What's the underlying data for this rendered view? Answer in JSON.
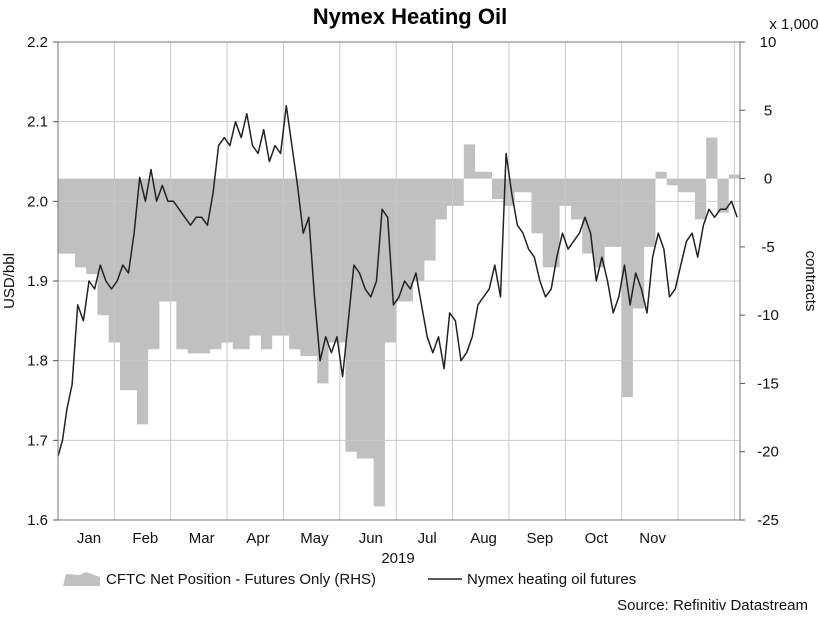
{
  "chart_data": {
    "type": "line",
    "title": "Nymex Heating Oil",
    "x_period": "2019",
    "months": [
      "Jan",
      "Feb",
      "Mar",
      "Apr",
      "May",
      "Jun",
      "Jul",
      "Aug",
      "Sep",
      "Oct",
      "Nov"
    ],
    "left_axis": {
      "label": "USD/bbl",
      "min": 1.6,
      "max": 2.2,
      "ticks": [
        "1.6",
        "1.7",
        "1.8",
        "1.9",
        "2.0",
        "2.1",
        "2.2"
      ]
    },
    "right_axis": {
      "label": "contracts",
      "multiplier": "x 1,000",
      "min": -25,
      "max": 10,
      "ticks": [
        "-25",
        "-20",
        "-15",
        "-10",
        "-5",
        "0",
        "5",
        "10"
      ]
    },
    "grid": true,
    "source": "Source: Refinitiv Datastream",
    "series": [
      {
        "name": "CFTC Net Position - Futures Only (RHS)",
        "type": "area",
        "axis": "right",
        "color": "#c0c0c0",
        "x": [
          0.0,
          0.3,
          0.3,
          0.5,
          0.5,
          0.7,
          0.7,
          0.9,
          0.9,
          1.1,
          1.1,
          1.4,
          1.4,
          1.6,
          1.6,
          1.8,
          1.8,
          2.1,
          2.1,
          2.3,
          2.3,
          2.7,
          2.7,
          2.9,
          2.9,
          3.1,
          3.1,
          3.4,
          3.4,
          3.6,
          3.6,
          3.8,
          3.8,
          4.1,
          4.1,
          4.3,
          4.3,
          4.6,
          4.6,
          4.8,
          4.8,
          5.1,
          5.1,
          5.3,
          5.3,
          5.6,
          5.6,
          5.8,
          5.8,
          6.0,
          6.0,
          6.3,
          6.3,
          6.5,
          6.5,
          6.7,
          6.7,
          6.9,
          6.9,
          7.2,
          7.2,
          7.4,
          7.4,
          7.7,
          7.7,
          7.9,
          7.9,
          8.1,
          8.1,
          8.4,
          8.4,
          8.6,
          8.6,
          8.9,
          8.9,
          9.1,
          9.1,
          9.3,
          9.3,
          9.5,
          9.5,
          9.7,
          9.7,
          10.0,
          10.0,
          10.2,
          10.2,
          10.4,
          10.4,
          10.6,
          10.6,
          10.8,
          10.8,
          11.0,
          11.0,
          11.3,
          11.3,
          11.5,
          11.5,
          11.7,
          11.7,
          11.9,
          11.9,
          12.1
        ],
        "values": [
          -5.5,
          -5.5,
          -6.5,
          -6.5,
          -7.0,
          -7.0,
          -10.0,
          -10.0,
          -12.0,
          -12.0,
          -15.5,
          -15.5,
          -18.0,
          -18.0,
          -12.5,
          -12.5,
          -9.0,
          -9.0,
          -12.5,
          -12.5,
          -12.8,
          -12.8,
          -12.5,
          -12.5,
          -12.0,
          -12.0,
          -12.5,
          -12.5,
          -11.5,
          -11.5,
          -12.5,
          -12.5,
          -11.5,
          -11.5,
          -12.5,
          -12.5,
          -13.0,
          -13.0,
          -15.0,
          -15.0,
          -12.0,
          -12.0,
          -20.0,
          -20.0,
          -20.5,
          -20.5,
          -24.0,
          -24.0,
          -12.0,
          -12.0,
          -9.0,
          -9.0,
          -7.5,
          -7.5,
          -6.0,
          -6.0,
          -3.0,
          -3.0,
          -2.0,
          -2.0,
          2.5,
          2.5,
          0.5,
          0.5,
          -1.5,
          -1.5,
          -2.0,
          -2.0,
          -1.0,
          -1.0,
          -4.0,
          -4.0,
          -6.5,
          -6.5,
          -2.0,
          -2.0,
          -3.0,
          -3.0,
          -5.5,
          -5.5,
          -6.5,
          -6.5,
          -5.0,
          -5.0,
          -16.0,
          -16.0,
          -9.5,
          -9.5,
          -5.0,
          -5.0,
          0.5,
          0.5,
          -0.5,
          -0.5,
          -1.0,
          -1.0,
          -3.0,
          -3.0,
          3.0,
          3.0,
          -2.5,
          -2.5,
          0.3,
          0.3
        ]
      },
      {
        "name": "Nymex heating oil futures",
        "type": "line",
        "axis": "left",
        "color": "#222222",
        "x": [
          0.0,
          0.08,
          0.16,
          0.25,
          0.35,
          0.45,
          0.55,
          0.65,
          0.75,
          0.85,
          0.95,
          1.05,
          1.15,
          1.25,
          1.35,
          1.45,
          1.55,
          1.65,
          1.75,
          1.85,
          1.95,
          2.05,
          2.15,
          2.25,
          2.35,
          2.45,
          2.55,
          2.65,
          2.75,
          2.85,
          2.95,
          3.05,
          3.15,
          3.25,
          3.35,
          3.45,
          3.55,
          3.65,
          3.75,
          3.85,
          3.95,
          4.05,
          4.15,
          4.25,
          4.35,
          4.45,
          4.55,
          4.65,
          4.75,
          4.85,
          4.95,
          5.05,
          5.15,
          5.25,
          5.35,
          5.45,
          5.55,
          5.65,
          5.75,
          5.85,
          5.95,
          6.05,
          6.15,
          6.25,
          6.35,
          6.45,
          6.55,
          6.65,
          6.75,
          6.85,
          6.95,
          7.05,
          7.15,
          7.25,
          7.35,
          7.45,
          7.55,
          7.65,
          7.75,
          7.85,
          7.95,
          8.05,
          8.15,
          8.25,
          8.35,
          8.45,
          8.55,
          8.65,
          8.75,
          8.85,
          8.95,
          9.05,
          9.15,
          9.25,
          9.35,
          9.45,
          9.55,
          9.65,
          9.75,
          9.85,
          9.95,
          10.05,
          10.15,
          10.25,
          10.35,
          10.45,
          10.55,
          10.65,
          10.75,
          10.85,
          10.95,
          11.05,
          11.15,
          11.25,
          11.35,
          11.45,
          11.55,
          11.65,
          11.75,
          11.85,
          11.95,
          12.05
        ],
        "values": [
          1.68,
          1.7,
          1.74,
          1.77,
          1.87,
          1.85,
          1.9,
          1.89,
          1.92,
          1.9,
          1.89,
          1.9,
          1.92,
          1.91,
          1.96,
          2.03,
          2.0,
          2.04,
          2.0,
          2.02,
          2.0,
          2.0,
          1.99,
          1.98,
          1.97,
          1.98,
          1.98,
          1.97,
          2.01,
          2.07,
          2.08,
          2.07,
          2.1,
          2.08,
          2.11,
          2.07,
          2.06,
          2.09,
          2.05,
          2.07,
          2.06,
          2.12,
          2.07,
          2.02,
          1.96,
          1.98,
          1.88,
          1.8,
          1.83,
          1.81,
          1.83,
          1.78,
          1.85,
          1.92,
          1.91,
          1.89,
          1.88,
          1.9,
          1.99,
          1.98,
          1.87,
          1.88,
          1.9,
          1.89,
          1.91,
          1.87,
          1.83,
          1.81,
          1.83,
          1.79,
          1.86,
          1.85,
          1.8,
          1.81,
          1.83,
          1.87,
          1.88,
          1.89,
          1.92,
          1.88,
          2.06,
          2.01,
          1.97,
          1.96,
          1.94,
          1.93,
          1.9,
          1.88,
          1.89,
          1.93,
          1.96,
          1.94,
          1.95,
          1.96,
          1.98,
          1.96,
          1.9,
          1.93,
          1.9,
          1.86,
          1.88,
          1.92,
          1.87,
          1.91,
          1.89,
          1.86,
          1.93,
          1.96,
          1.94,
          1.88,
          1.89,
          1.92,
          1.95,
          1.96,
          1.93,
          1.97,
          1.99,
          1.98,
          1.99,
          1.99,
          2.0,
          1.98
        ]
      }
    ]
  }
}
